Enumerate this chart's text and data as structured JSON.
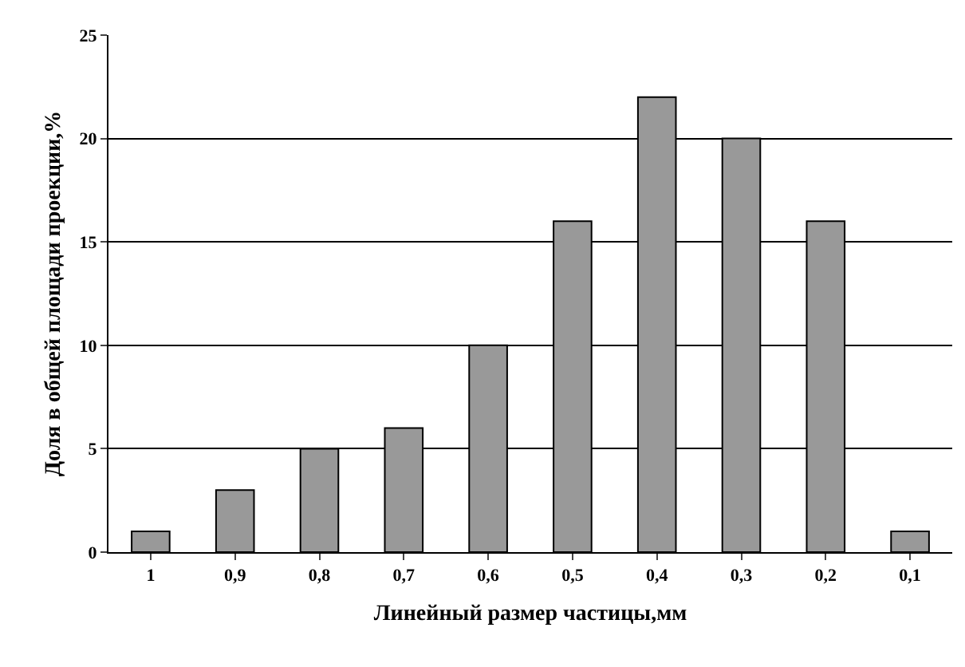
{
  "chart_data": {
    "type": "bar",
    "xlabel": "Линейный размер частицы,мм",
    "ylabel": "Доля в общей площади проекции,%",
    "categories": [
      "1",
      "0,9",
      "0,8",
      "0,7",
      "0,6",
      "0,5",
      "0,4",
      "0,3",
      "0,2",
      "0,1"
    ],
    "values": [
      1,
      3,
      5,
      6,
      10,
      16,
      22,
      20,
      16,
      1
    ],
    "color": "#999999",
    "ylim": [
      0,
      25
    ],
    "yticks": [
      0,
      5,
      10,
      15,
      20,
      25
    ],
    "grid": "y"
  }
}
